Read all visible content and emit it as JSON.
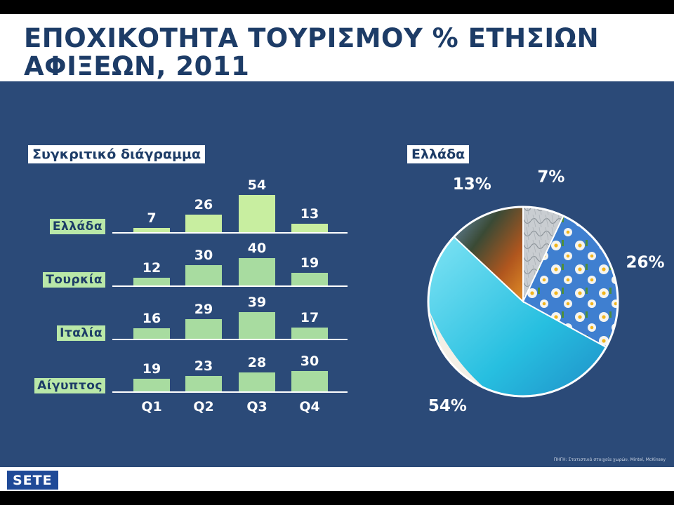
{
  "title": {
    "line1": "ΕΠΟΧΙΚΟΤΗΤΑ ΤΟΥΡΙΣΜΟΥ % ΕΤΗΣΙΩΝ",
    "line2": "ΑΦΙΞΕΩΝ, 2011"
  },
  "bar_panel_label": "Συγκριτικό διάγραμμα",
  "pie_panel_label": "Ελλάδα",
  "logo": "SETE",
  "source_note": "ΠΗΓΗ: Στατιστικά στοιχεία χωρών, Mintel, McKinsey",
  "colors": {
    "background": "#2b4a78",
    "title": "#1d3c67",
    "bar_greece": "#c8eea0",
    "bar_other": "#a8dca0"
  },
  "chart_data": [
    {
      "type": "bar",
      "title": "Συγκριτικό διάγραμμα",
      "categories": [
        "Q1",
        "Q2",
        "Q3",
        "Q4"
      ],
      "series": [
        {
          "name": "Ελλάδα",
          "values": [
            7,
            26,
            54,
            13
          ]
        },
        {
          "name": "Τουρκία",
          "values": [
            12,
            30,
            40,
            19
          ]
        },
        {
          "name": "Ιταλία",
          "values": [
            16,
            29,
            39,
            17
          ]
        },
        {
          "name": "Αίγυπτος",
          "values": [
            19,
            23,
            28,
            30
          ]
        }
      ],
      "value_unit": "%",
      "grid": false
    },
    {
      "type": "pie",
      "title": "Ελλάδα",
      "slices": [
        {
          "label": "7%",
          "value": 7,
          "image": "winter-tree-texture"
        },
        {
          "label": "26%",
          "value": 26,
          "image": "spring-daisies"
        },
        {
          "label": "54%",
          "value": 54,
          "image": "summer-beach"
        },
        {
          "label": "13%",
          "value": 13,
          "image": "autumn-mountains"
        }
      ],
      "start_angle_deg": 0,
      "direction": "clockwise"
    }
  ]
}
